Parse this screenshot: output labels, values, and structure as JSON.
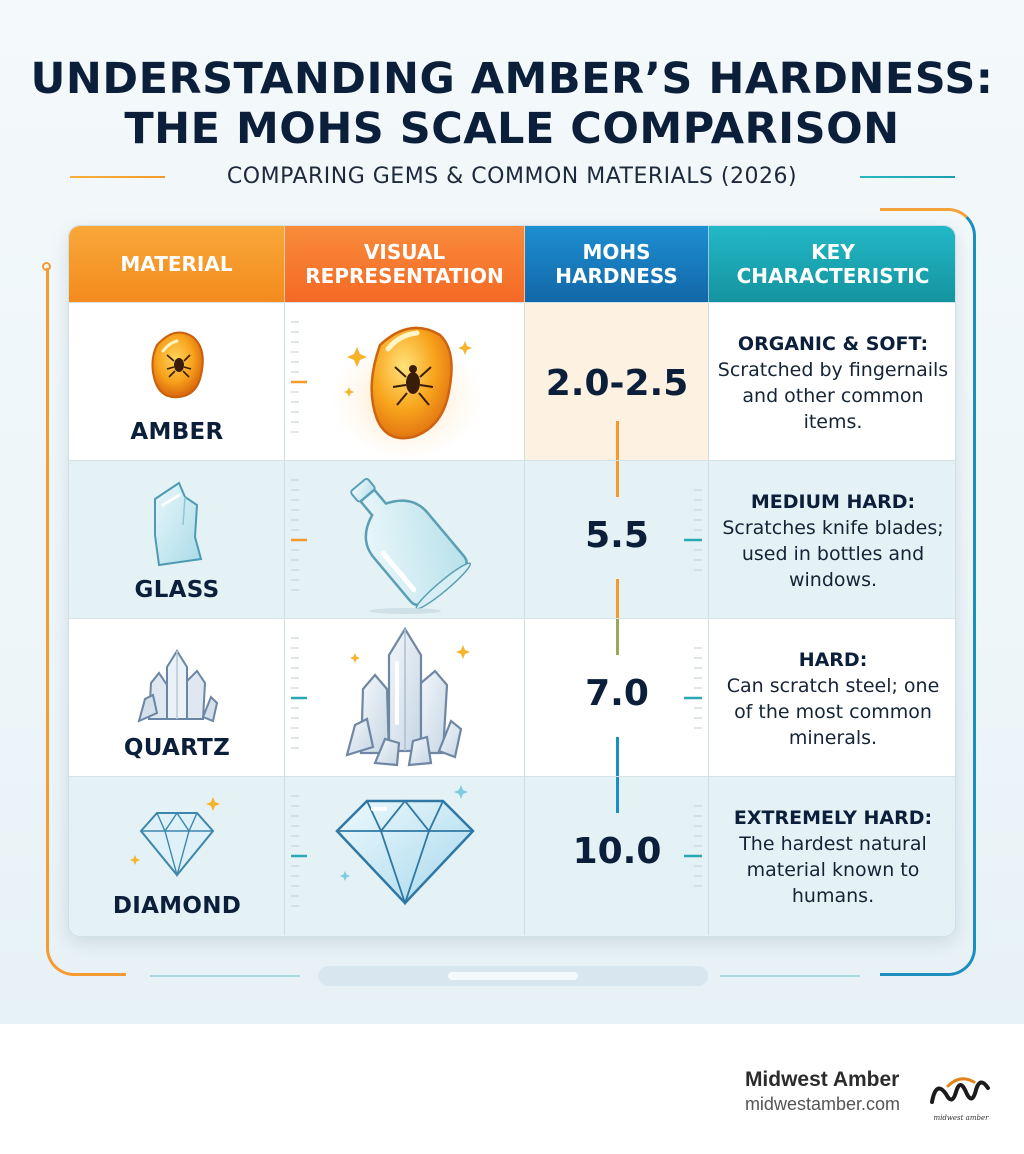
{
  "title": {
    "line1": "UNDERSTANDING AMBER’S HARDNESS:",
    "line2": "THE MOHS SCALE COMPARISON"
  },
  "subtitle": "COMPARING GEMS & COMMON MATERIALS (2026)",
  "table": {
    "headers": {
      "material": "MATERIAL",
      "visual_line1": "VISUAL",
      "visual_line2": "REPRESENTATION",
      "mohs_line1": "MOHS",
      "mohs_line2": "HARDNESS",
      "key_line1": "KEY",
      "key_line2": "CHARACTERISTIC"
    },
    "rows": [
      {
        "material": "AMBER",
        "hardness": "2.0-2.5",
        "heading": "ORGANIC & SOFT:",
        "description": "Scratched by fingernails and other common items.",
        "icon": "amber-with-insect-icon",
        "accent": "#f59a2a"
      },
      {
        "material": "GLASS",
        "hardness": "5.5",
        "heading": "MEDIUM HARD:",
        "description": "Scratches knife blades; used in bottles and windows.",
        "icon": "glass-bottle-icon",
        "accent": "#f59a2a"
      },
      {
        "material": "QUARTZ",
        "hardness": "7.0",
        "heading": "HARD:",
        "description": "Can scratch steel; one of the most common minerals.",
        "icon": "quartz-crystal-icon",
        "accent": "#2aa8b6"
      },
      {
        "material": "DIAMOND",
        "hardness": "10.0",
        "heading": "EXTREMELY HARD:",
        "description": "The hardest natural material known to humans.",
        "icon": "diamond-icon",
        "accent": "#1a8fc4"
      }
    ]
  },
  "footer": {
    "brand_name": "Midwest Amber",
    "brand_url": "midwestamber.com",
    "logo_caption": "midwest amber"
  },
  "colors": {
    "orange": "#f59a2a",
    "orange_red": "#f46925",
    "blue": "#1267a8",
    "teal": "#14949f",
    "navy_text": "#0b1f3a"
  }
}
